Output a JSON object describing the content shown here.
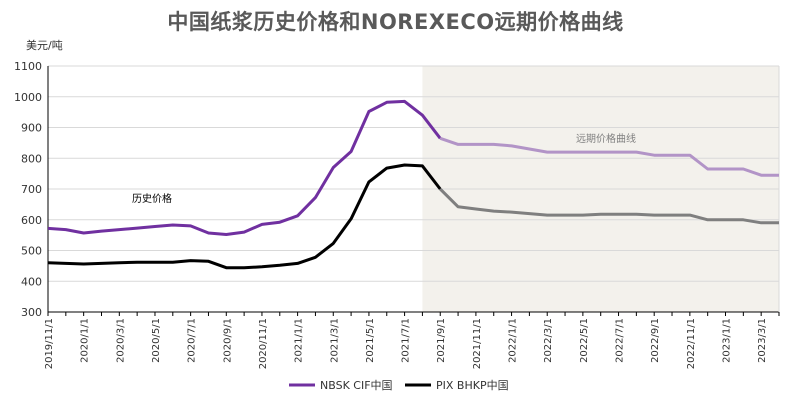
{
  "chart_data": {
    "type": "line",
    "title": "中国纸浆历史价格和NOREXECO远期价格曲线",
    "ylabel": "美元/吨",
    "ylim": [
      300,
      1100
    ],
    "yticks": [
      300,
      400,
      500,
      600,
      700,
      800,
      900,
      1000,
      1100
    ],
    "x_tick_labels": [
      "2019/11/1",
      "2020/1/1",
      "2020/3/1",
      "2020/5/1",
      "2020/7/1",
      "2020/9/1",
      "2020/11/1",
      "2021/1/1",
      "2021/3/1",
      "2021/5/1",
      "2021/7/1",
      "2021/9/1",
      "2021/11/1",
      "2022/1/1",
      "2022/3/1",
      "2022/5/1",
      "2022/7/1",
      "2022/9/1",
      "2022/11/1",
      "2023/1/1",
      "2023/3/1"
    ],
    "x_start": "2019/11/1",
    "x_end": "2023/4/1",
    "forecast_start": "2021/8/1",
    "grid": true,
    "legend_position": "bottom",
    "annotations": {
      "history": "历史价格",
      "forecast": "远期价格曲线"
    },
    "series": [
      {
        "name": "NBSK CIF中国",
        "color": "#7030a0",
        "forecast_color": "#b294c7",
        "points": [
          [
            "2019/11/1",
            572
          ],
          [
            "2019/12/1",
            568
          ],
          [
            "2020/1/1",
            557
          ],
          [
            "2020/2/1",
            563
          ],
          [
            "2020/3/1",
            568
          ],
          [
            "2020/4/1",
            573
          ],
          [
            "2020/5/1",
            578
          ],
          [
            "2020/6/1",
            583
          ],
          [
            "2020/7/1",
            580
          ],
          [
            "2020/8/1",
            557
          ],
          [
            "2020/9/1",
            552
          ],
          [
            "2020/10/1",
            560
          ],
          [
            "2020/11/1",
            585
          ],
          [
            "2020/12/1",
            592
          ],
          [
            "2021/1/1",
            613
          ],
          [
            "2021/2/1",
            672
          ],
          [
            "2021/3/1",
            770
          ],
          [
            "2021/4/1",
            822
          ],
          [
            "2021/5/1",
            952
          ],
          [
            "2021/6/1",
            982
          ],
          [
            "2021/7/1",
            985
          ],
          [
            "2021/8/1",
            940
          ],
          [
            "2021/9/1",
            865
          ],
          [
            "2021/10/1",
            845
          ],
          [
            "2021/11/1",
            845
          ],
          [
            "2021/12/1",
            845
          ],
          [
            "2022/1/1",
            840
          ],
          [
            "2022/2/1",
            830
          ],
          [
            "2022/3/1",
            820
          ],
          [
            "2022/4/1",
            820
          ],
          [
            "2022/5/1",
            820
          ],
          [
            "2022/6/1",
            820
          ],
          [
            "2022/7/1",
            820
          ],
          [
            "2022/8/1",
            820
          ],
          [
            "2022/9/1",
            810
          ],
          [
            "2022/10/1",
            810
          ],
          [
            "2022/11/1",
            810
          ],
          [
            "2022/12/1",
            765
          ],
          [
            "2023/1/1",
            765
          ],
          [
            "2023/2/1",
            765
          ],
          [
            "2023/3/1",
            745
          ],
          [
            "2023/4/1",
            745
          ]
        ]
      },
      {
        "name": "PIX BHKP中国",
        "color": "#000000",
        "forecast_color": "#7f7f7f",
        "points": [
          [
            "2019/11/1",
            460
          ],
          [
            "2019/12/1",
            458
          ],
          [
            "2020/1/1",
            456
          ],
          [
            "2020/2/1",
            458
          ],
          [
            "2020/3/1",
            460
          ],
          [
            "2020/4/1",
            462
          ],
          [
            "2020/5/1",
            462
          ],
          [
            "2020/6/1",
            462
          ],
          [
            "2020/7/1",
            467
          ],
          [
            "2020/8/1",
            465
          ],
          [
            "2020/9/1",
            444
          ],
          [
            "2020/10/1",
            444
          ],
          [
            "2020/11/1",
            447
          ],
          [
            "2020/12/1",
            452
          ],
          [
            "2021/1/1",
            458
          ],
          [
            "2021/2/1",
            478
          ],
          [
            "2021/3/1",
            523
          ],
          [
            "2021/4/1",
            603
          ],
          [
            "2021/5/1",
            723
          ],
          [
            "2021/6/1",
            768
          ],
          [
            "2021/7/1",
            778
          ],
          [
            "2021/8/1",
            775
          ],
          [
            "2021/9/1",
            700
          ],
          [
            "2021/10/1",
            642
          ],
          [
            "2021/11/1",
            635
          ],
          [
            "2021/12/1",
            628
          ],
          [
            "2022/1/1",
            625
          ],
          [
            "2022/2/1",
            620
          ],
          [
            "2022/3/1",
            615
          ],
          [
            "2022/4/1",
            615
          ],
          [
            "2022/5/1",
            615
          ],
          [
            "2022/6/1",
            618
          ],
          [
            "2022/7/1",
            618
          ],
          [
            "2022/8/1",
            618
          ],
          [
            "2022/9/1",
            615
          ],
          [
            "2022/10/1",
            615
          ],
          [
            "2022/11/1",
            615
          ],
          [
            "2022/12/1",
            600
          ],
          [
            "2023/1/1",
            600
          ],
          [
            "2023/2/1",
            600
          ],
          [
            "2023/3/1",
            590
          ],
          [
            "2023/4/1",
            590
          ]
        ]
      }
    ]
  }
}
